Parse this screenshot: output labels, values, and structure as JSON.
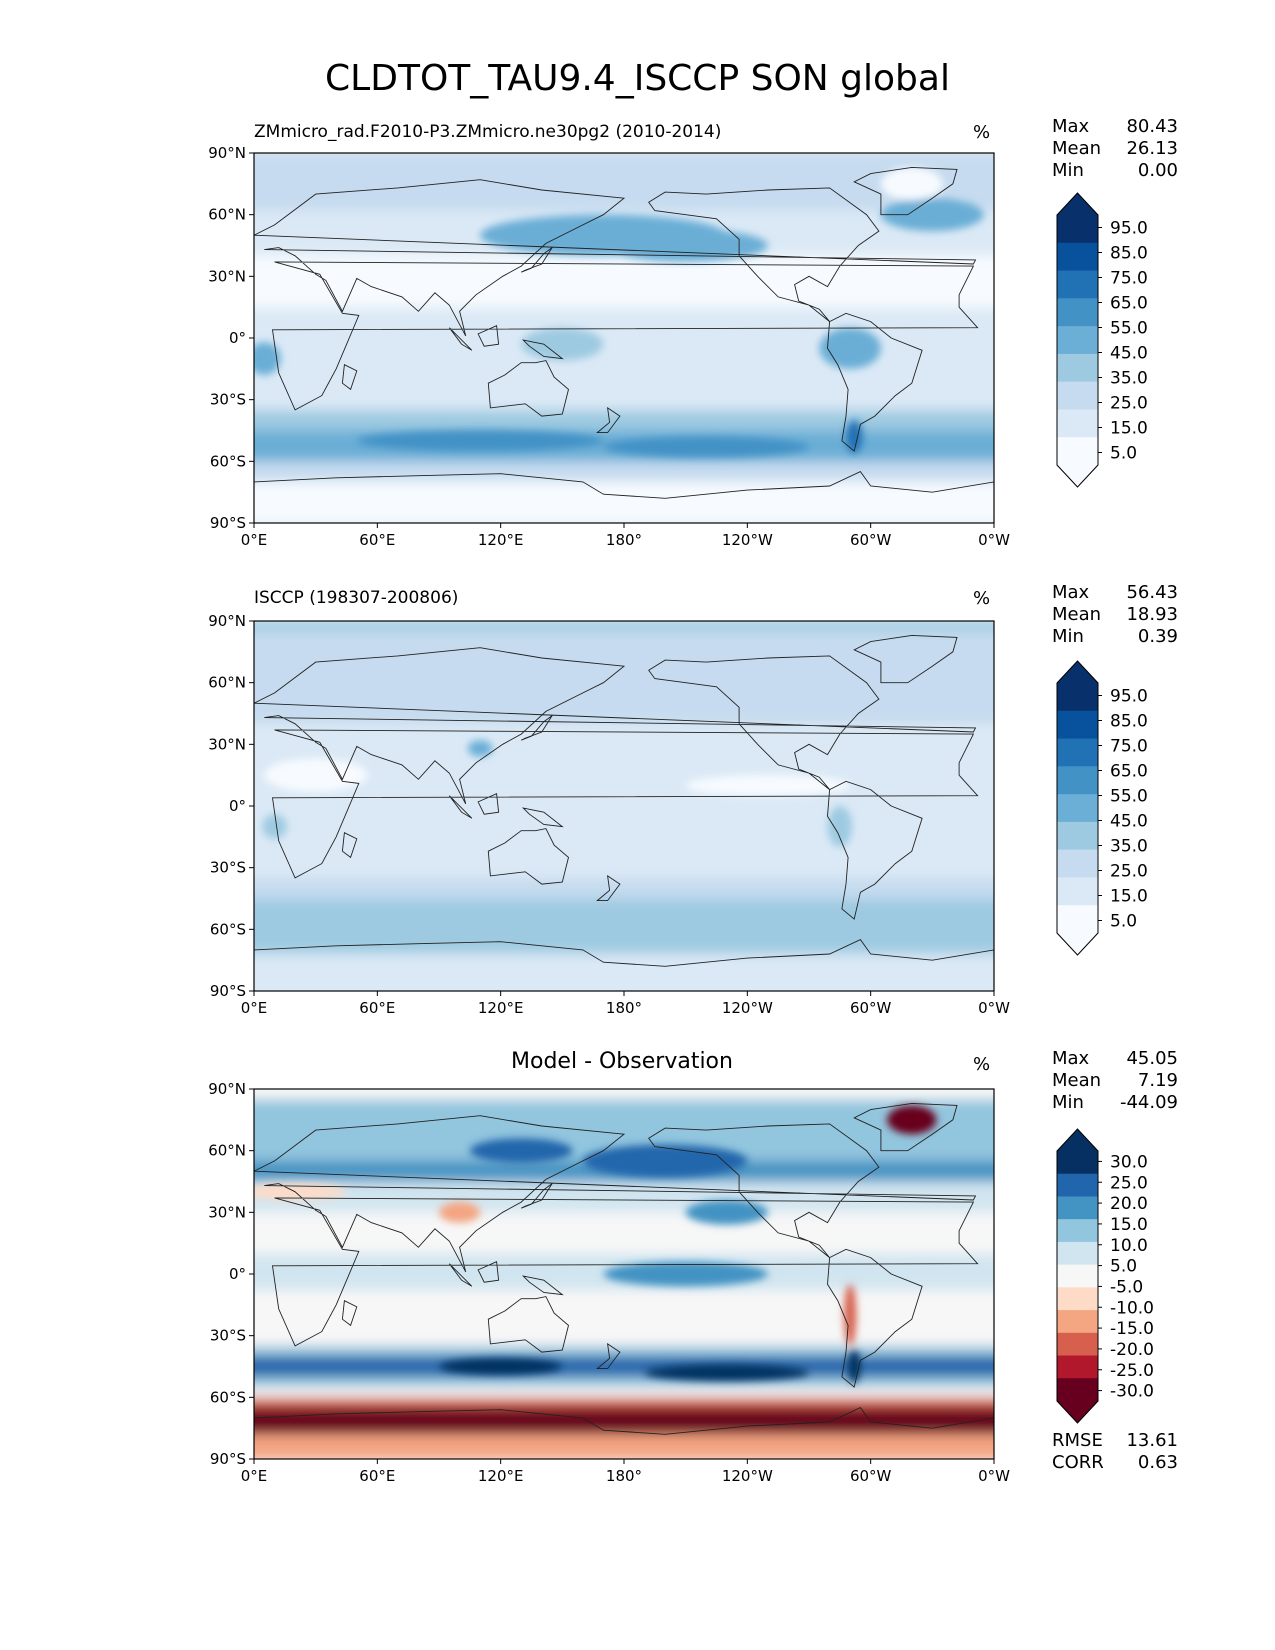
{
  "title": "CLDTOT_TAU9.4_ISCCP SON global",
  "units": "%",
  "axis_ticks": {
    "lon": [
      "0°E",
      "60°E",
      "120°E",
      "180°",
      "120°W",
      "60°W",
      "0°W"
    ],
    "lat": [
      "90°N",
      "60°N",
      "30°N",
      "0°",
      "30°S",
      "60°S",
      "90°S"
    ]
  },
  "panels": [
    {
      "title": "ZMmicro_rad.F2010-P3.ZMmicro.ne30pg2 (2010-2014)",
      "stats": [
        [
          "Max",
          "80.43"
        ],
        [
          "Mean",
          "26.13"
        ],
        [
          "Min",
          "0.00"
        ]
      ],
      "colorbar": [
        "95.0",
        "85.0",
        "75.0",
        "65.0",
        "55.0",
        "45.0",
        "35.0",
        "25.0",
        "15.0",
        "5.0"
      ],
      "colors": [
        "#08306b",
        "#08519c",
        "#2171b5",
        "#4292c6",
        "#6baed6",
        "#9ecae1",
        "#c6dbef",
        "#dbe9f6",
        "#f7fbff"
      ]
    },
    {
      "title": "ISCCP (198307-200806)",
      "stats": [
        [
          "Max",
          "56.43"
        ],
        [
          "Mean",
          "18.93"
        ],
        [
          "Min",
          "0.39"
        ]
      ],
      "colorbar": [
        "95.0",
        "85.0",
        "75.0",
        "65.0",
        "55.0",
        "45.0",
        "35.0",
        "25.0",
        "15.0",
        "5.0"
      ],
      "colors": [
        "#08306b",
        "#08519c",
        "#2171b5",
        "#4292c6",
        "#6baed6",
        "#9ecae1",
        "#c6dbef",
        "#dbe9f6",
        "#f7fbff"
      ]
    },
    {
      "title": "Model - Observation",
      "stats": [
        [
          "Max",
          "45.05"
        ],
        [
          "Mean",
          "7.19"
        ],
        [
          "Min",
          "-44.09"
        ]
      ],
      "colorbar": [
        "30.0",
        "25.0",
        "20.0",
        "15.0",
        "10.0",
        "5.0",
        "-5.0",
        "-10.0",
        "-15.0",
        "-20.0",
        "-25.0",
        "-30.0"
      ],
      "colors": [
        "#053061",
        "#2166ac",
        "#4393c3",
        "#92c5de",
        "#d1e5f0",
        "#f7f7f7",
        "#fddbc7",
        "#f4a582",
        "#d6604d",
        "#b2182b",
        "#67001f"
      ],
      "metrics": [
        [
          "RMSE",
          "13.61"
        ],
        [
          "CORR",
          "0.63"
        ]
      ]
    }
  ],
  "chart_data": [
    {
      "type": "heatmap",
      "title": "ZMmicro_rad.F2010-P3.ZMmicro.ne30pg2 (2010-2014)",
      "units": "%",
      "xlim": [
        0,
        360
      ],
      "ylim": [
        -90,
        90
      ],
      "levels": [
        5,
        15,
        25,
        35,
        45,
        55,
        65,
        75,
        85,
        95
      ],
      "stats": {
        "max": 80.43,
        "mean": 26.13,
        "min": 0.0
      }
    },
    {
      "type": "heatmap",
      "title": "ISCCP (198307-200806)",
      "units": "%",
      "xlim": [
        0,
        360
      ],
      "ylim": [
        -90,
        90
      ],
      "levels": [
        5,
        15,
        25,
        35,
        45,
        55,
        65,
        75,
        85,
        95
      ],
      "stats": {
        "max": 56.43,
        "mean": 18.93,
        "min": 0.39
      }
    },
    {
      "type": "heatmap",
      "title": "Model - Observation",
      "units": "%",
      "xlim": [
        0,
        360
      ],
      "ylim": [
        -90,
        90
      ],
      "levels": [
        -30,
        -25,
        -20,
        -15,
        -10,
        -5,
        5,
        10,
        15,
        20,
        25,
        30
      ],
      "stats": {
        "max": 45.05,
        "mean": 7.19,
        "min": -44.09,
        "rmse": 13.61,
        "corr": 0.63
      }
    }
  ]
}
